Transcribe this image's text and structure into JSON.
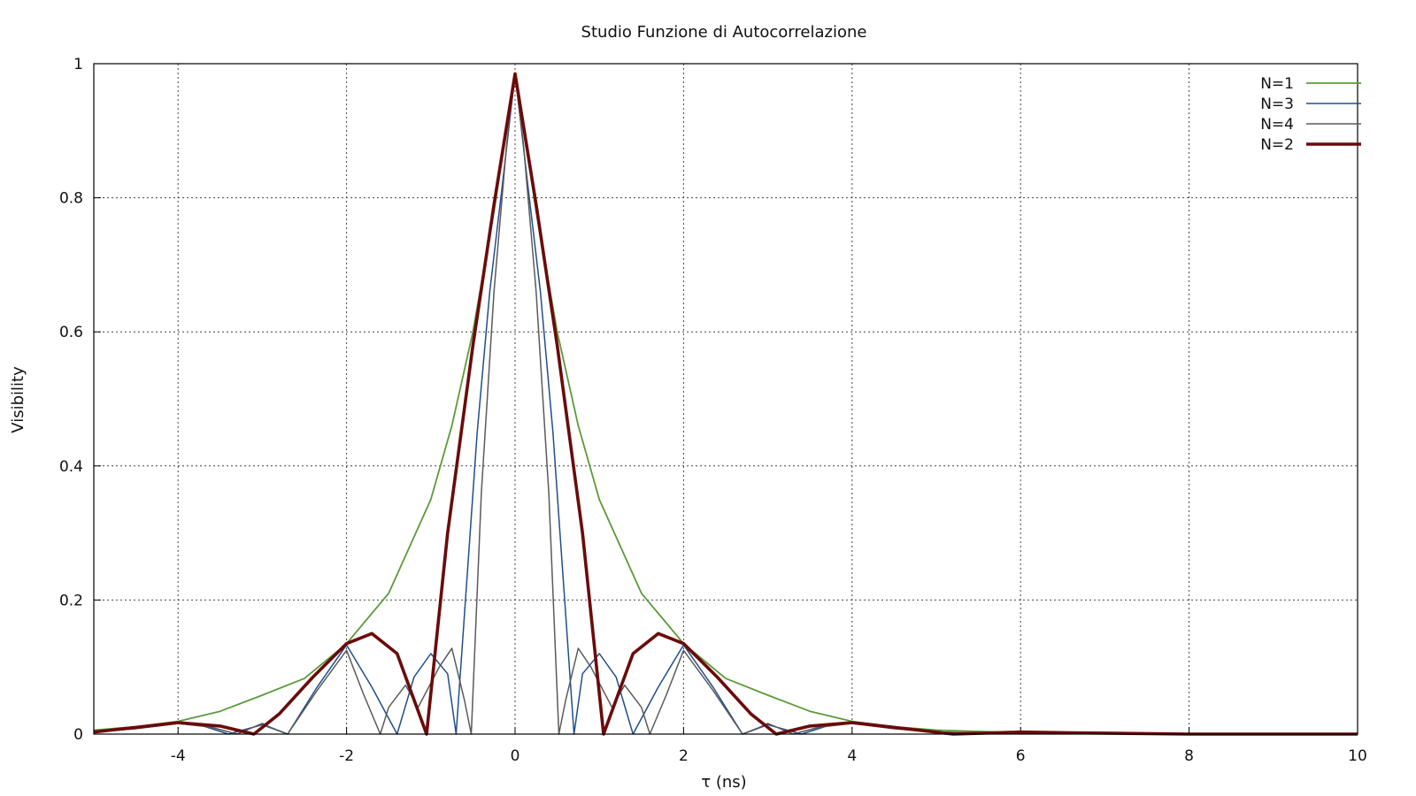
{
  "chart_data": {
    "type": "line",
    "title": "Studio Funzione di Autocorrelazione",
    "xlabel": "τ (ns)",
    "ylabel": "Visibility",
    "xlim": [
      -5,
      10
    ],
    "ylim": [
      0,
      1
    ],
    "xticks": [
      -4,
      -2,
      0,
      2,
      4,
      6,
      8,
      10
    ],
    "xtick_labels": [
      "-4",
      "-2",
      "0",
      "2",
      "4",
      "6",
      "8",
      "10"
    ],
    "yticks": [
      0,
      0.2,
      0.4,
      0.6,
      0.8,
      1
    ],
    "ytick_labels": [
      "0",
      "0.2",
      "0.4",
      "0.6",
      "0.8",
      "1"
    ],
    "grid": true,
    "legend_position": "top-right",
    "series": [
      {
        "name": "N=1",
        "color": "#5b9a3a",
        "x": [
          -5.0,
          -4.5,
          -4.0,
          -3.5,
          -3.0,
          -2.5,
          -2.0,
          -1.5,
          -1.0,
          -0.75,
          -0.5,
          -0.25,
          0,
          0.25,
          0.5,
          0.75,
          1.0,
          1.5,
          2.0,
          2.5,
          3.0,
          3.5,
          4.0,
          4.5,
          5.0,
          5.5,
          6.0,
          7.0,
          8.0,
          9.0,
          10.0
        ],
        "y": [
          0.006,
          0.011,
          0.019,
          0.034,
          0.058,
          0.083,
          0.135,
          0.21,
          0.35,
          0.46,
          0.6,
          0.78,
          0.985,
          0.78,
          0.6,
          0.46,
          0.35,
          0.21,
          0.135,
          0.083,
          0.058,
          0.034,
          0.019,
          0.011,
          0.006,
          0.004,
          0.002,
          0.001,
          0.0,
          0.0,
          0.0
        ]
      },
      {
        "name": "N=3",
        "color": "#1f4e8c",
        "x": [
          -5.0,
          -4.5,
          -4.0,
          -3.7,
          -3.4,
          -3.0,
          -2.7,
          -2.35,
          -2.0,
          -1.7,
          -1.4,
          -1.2,
          -1.0,
          -0.8,
          -0.7,
          -0.6,
          -0.45,
          -0.3,
          -0.15,
          0,
          0.15,
          0.3,
          0.45,
          0.6,
          0.7,
          0.8,
          1.0,
          1.2,
          1.4,
          1.7,
          2.0,
          2.35,
          2.7,
          3.0,
          3.4,
          3.7,
          4.0,
          4.5,
          5.0,
          6.0,
          8.0,
          10.0
        ],
        "y": [
          0.003,
          0.008,
          0.016,
          0.012,
          0.0,
          0.014,
          0.0,
          0.07,
          0.133,
          0.07,
          0.0,
          0.085,
          0.12,
          0.09,
          0.0,
          0.18,
          0.45,
          0.66,
          0.82,
          0.985,
          0.82,
          0.66,
          0.45,
          0.18,
          0.0,
          0.09,
          0.12,
          0.085,
          0.0,
          0.07,
          0.133,
          0.07,
          0.0,
          0.014,
          0.0,
          0.012,
          0.016,
          0.008,
          0.003,
          0.001,
          0.0,
          0.0
        ]
      },
      {
        "name": "N=4",
        "color": "#5a5a5a",
        "x": [
          -5.0,
          -4.5,
          -4.0,
          -3.6,
          -3.3,
          -3.0,
          -2.9,
          -2.7,
          -2.35,
          -2.0,
          -1.8,
          -1.6,
          -1.5,
          -1.3,
          -1.15,
          -0.9,
          -0.75,
          -0.6,
          -0.52,
          -0.4,
          -0.25,
          -0.1,
          0,
          0.1,
          0.25,
          0.4,
          0.52,
          0.6,
          0.75,
          0.9,
          1.15,
          1.3,
          1.5,
          1.6,
          1.8,
          2.0,
          2.35,
          2.7,
          2.9,
          3.0,
          3.3,
          3.6,
          4.0,
          4.5,
          5.0,
          6.0,
          8.0,
          10.0
        ],
        "y": [
          0.003,
          0.008,
          0.016,
          0.01,
          0.0,
          0.016,
          0.01,
          0.0,
          0.065,
          0.125,
          0.06,
          0.0,
          0.04,
          0.073,
          0.04,
          0.1,
          0.128,
          0.05,
          0.0,
          0.36,
          0.66,
          0.88,
          0.985,
          0.88,
          0.66,
          0.36,
          0.0,
          0.05,
          0.128,
          0.1,
          0.04,
          0.073,
          0.04,
          0.0,
          0.06,
          0.125,
          0.065,
          0.0,
          0.01,
          0.016,
          0.0,
          0.01,
          0.016,
          0.008,
          0.003,
          0.001,
          0.0,
          0.0
        ]
      },
      {
        "name": "N=2",
        "color": "#6b0a0a",
        "x": [
          -5.0,
          -4.5,
          -4.0,
          -3.5,
          -3.1,
          -2.8,
          -2.4,
          -2.0,
          -1.7,
          -1.4,
          -1.05,
          -0.8,
          -0.5,
          -0.25,
          0,
          0.25,
          0.5,
          0.8,
          1.05,
          1.4,
          1.7,
          2.0,
          2.4,
          2.8,
          3.1,
          3.5,
          4.0,
          4.5,
          5.2,
          6.0,
          6.6,
          8.0,
          10.0
        ],
        "y": [
          0.003,
          0.01,
          0.017,
          0.012,
          0.0,
          0.03,
          0.085,
          0.135,
          0.15,
          0.12,
          0.0,
          0.3,
          0.58,
          0.79,
          0.985,
          0.79,
          0.58,
          0.3,
          0.0,
          0.12,
          0.15,
          0.135,
          0.085,
          0.03,
          0.0,
          0.012,
          0.017,
          0.01,
          0.0,
          0.003,
          0.002,
          0.0,
          0.0
        ]
      }
    ]
  }
}
